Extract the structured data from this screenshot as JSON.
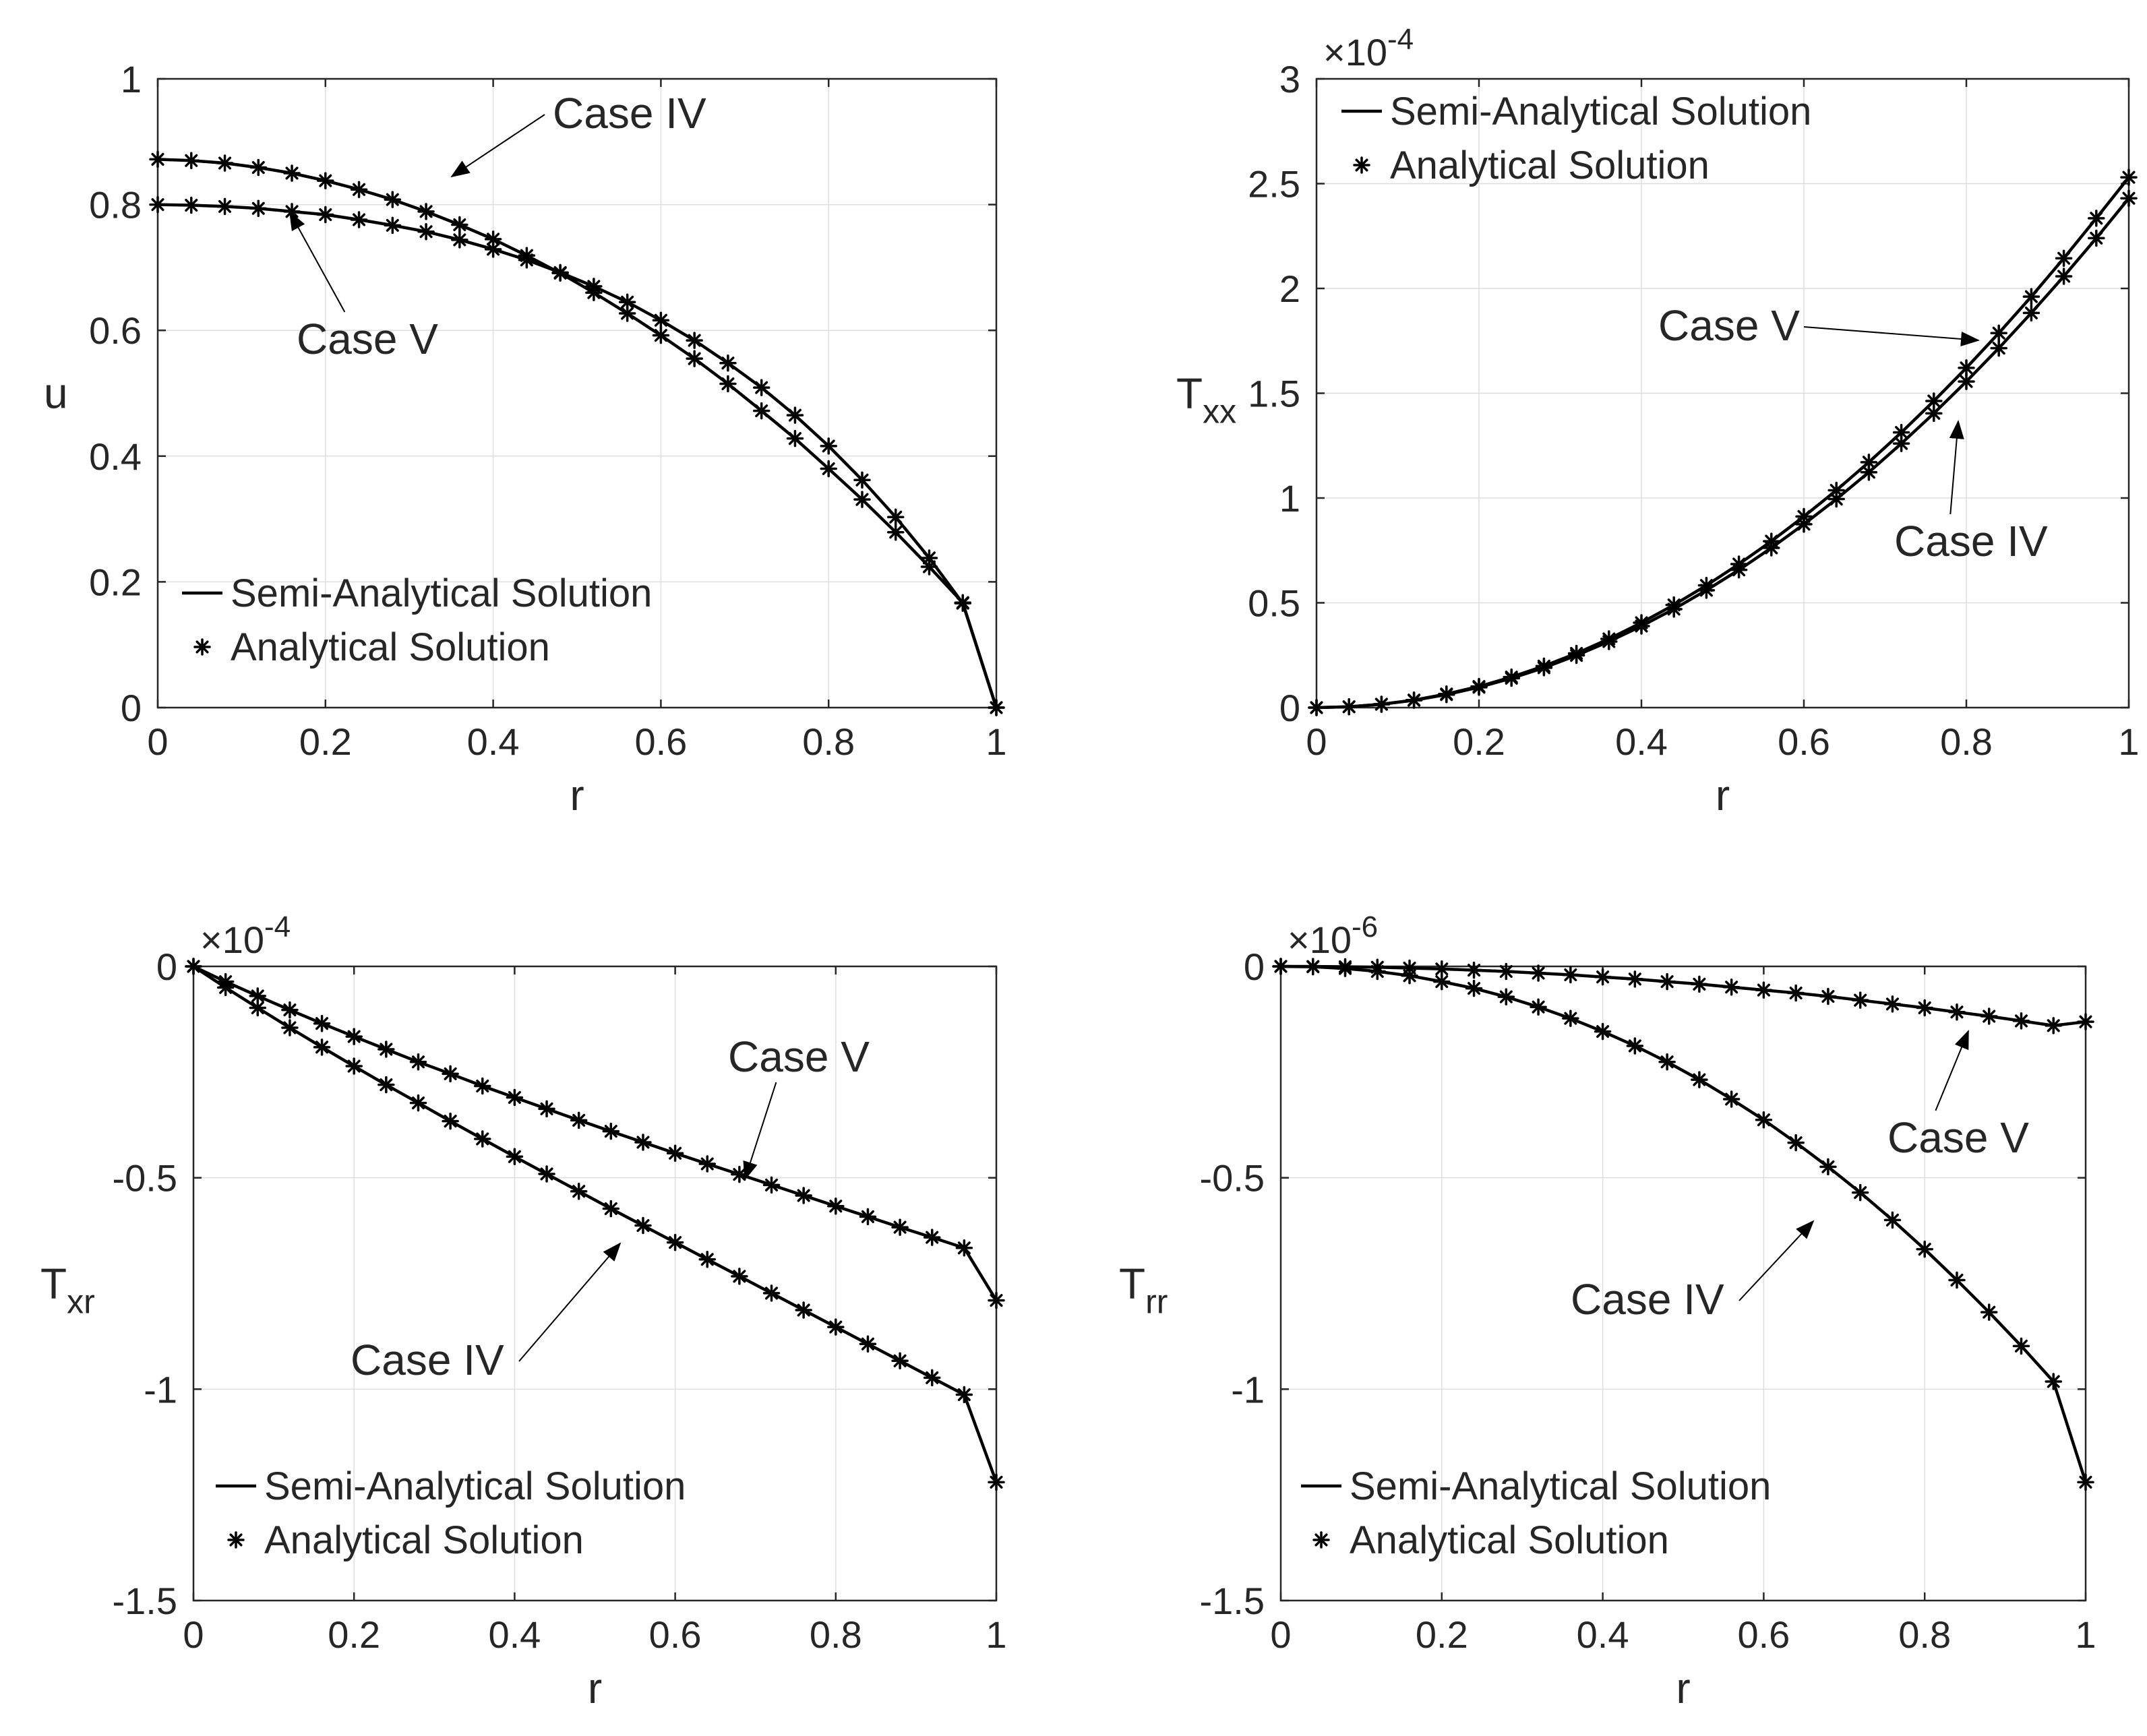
{
  "chart_data": [
    {
      "type": "line",
      "title": "",
      "xlabel": "r",
      "ylabel": "u",
      "ylabel_sub": "",
      "xlim": [
        0,
        1
      ],
      "ylim": [
        0,
        1
      ],
      "exponent_label": "",
      "x_ticks": [
        0,
        0.2,
        0.4,
        0.6,
        0.8,
        1
      ],
      "x_tick_labels": [
        "0",
        "0.2",
        "0.4",
        "0.6",
        "0.8",
        "1"
      ],
      "y_ticks": [
        0,
        0.2,
        0.4,
        0.6,
        0.8,
        1
      ],
      "y_tick_labels": [
        "0",
        "0.2",
        "0.4",
        "0.6",
        "0.8",
        "1"
      ],
      "grid": true,
      "legend": {
        "placement": "bottom-left",
        "entries": [
          {
            "symbol": "line",
            "label": "Semi-Analytical Solution"
          },
          {
            "symbol": "asterisk",
            "label": "Analytical Solution"
          }
        ]
      },
      "series": [
        {
          "name": "Case IV",
          "x": [
            0,
            0.04,
            0.08,
            0.12,
            0.16,
            0.2,
            0.24,
            0.28,
            0.32,
            0.36,
            0.4,
            0.44,
            0.48,
            0.52,
            0.56,
            0.6,
            0.64,
            0.68,
            0.72,
            0.76,
            0.8,
            0.84,
            0.88,
            0.92,
            0.96,
            1
          ],
          "y": [
            0.872,
            0.87,
            0.866,
            0.859,
            0.85,
            0.838,
            0.824,
            0.808,
            0.789,
            0.768,
            0.745,
            0.719,
            0.691,
            0.66,
            0.627,
            0.592,
            0.555,
            0.515,
            0.472,
            0.428,
            0.38,
            0.331,
            0.279,
            0.224,
            0.167,
            0.0
          ]
        },
        {
          "name": "Case V",
          "x": [
            0,
            0.04,
            0.08,
            0.12,
            0.16,
            0.2,
            0.24,
            0.28,
            0.32,
            0.36,
            0.4,
            0.44,
            0.48,
            0.52,
            0.56,
            0.6,
            0.64,
            0.68,
            0.72,
            0.76,
            0.8,
            0.84,
            0.88,
            0.92,
            0.96,
            1
          ],
          "y": [
            0.8,
            0.799,
            0.797,
            0.794,
            0.789,
            0.784,
            0.776,
            0.767,
            0.757,
            0.744,
            0.729,
            0.712,
            0.692,
            0.67,
            0.645,
            0.616,
            0.584,
            0.548,
            0.509,
            0.465,
            0.416,
            0.362,
            0.303,
            0.238,
            0.166,
            0.0
          ]
        }
      ],
      "annotations": [
        {
          "text": "Case IV",
          "target": [
            0.35,
            0.8
          ]
        },
        {
          "text": "Case V",
          "target": [
            0.16,
            0.79
          ]
        }
      ]
    },
    {
      "type": "line",
      "title": "",
      "xlabel": "r",
      "ylabel": "T",
      "ylabel_sub": "xx",
      "xlim": [
        0,
        1
      ],
      "ylim": [
        0,
        3
      ],
      "exponent_label": "10",
      "exponent_power": "-4",
      "x_ticks": [
        0,
        0.2,
        0.4,
        0.6,
        0.8,
        1
      ],
      "x_tick_labels": [
        "0",
        "0.2",
        "0.4",
        "0.6",
        "0.8",
        "1"
      ],
      "y_ticks": [
        0,
        0.5,
        1,
        1.5,
        2,
        2.5,
        3
      ],
      "y_tick_labels": [
        "0",
        "0.5",
        "1",
        "1.5",
        "2",
        "2.5",
        "3"
      ],
      "grid": true,
      "legend": {
        "placement": "top-left",
        "entries": [
          {
            "symbol": "line",
            "label": "Semi-Analytical Solution"
          },
          {
            "symbol": "asterisk",
            "label": "Analytical Solution"
          }
        ]
      },
      "series": [
        {
          "name": "Case V",
          "x": [
            0,
            0.04,
            0.08,
            0.12,
            0.16,
            0.2,
            0.24,
            0.28,
            0.32,
            0.36,
            0.4,
            0.44,
            0.48,
            0.52,
            0.56,
            0.6,
            0.64,
            0.68,
            0.72,
            0.76,
            0.8,
            0.84,
            0.88,
            0.92,
            0.96,
            1
          ],
          "y": [
            0.0,
            0.004,
            0.016,
            0.036,
            0.065,
            0.101,
            0.146,
            0.198,
            0.259,
            0.328,
            0.405,
            0.49,
            0.583,
            0.685,
            0.794,
            0.912,
            1.037,
            1.171,
            1.313,
            1.463,
            1.621,
            1.787,
            1.961,
            2.144,
            2.335,
            2.53
          ]
        },
        {
          "name": "Case IV",
          "x": [
            0,
            0.04,
            0.08,
            0.12,
            0.16,
            0.2,
            0.24,
            0.28,
            0.32,
            0.36,
            0.4,
            0.44,
            0.48,
            0.52,
            0.56,
            0.6,
            0.64,
            0.68,
            0.72,
            0.76,
            0.8,
            0.84,
            0.88,
            0.92,
            0.96,
            1
          ],
          "y": [
            0.0,
            0.004,
            0.016,
            0.035,
            0.062,
            0.097,
            0.14,
            0.19,
            0.249,
            0.315,
            0.389,
            0.47,
            0.56,
            0.657,
            0.762,
            0.875,
            0.995,
            1.123,
            1.26,
            1.404,
            1.556,
            1.715,
            1.883,
            2.058,
            2.24,
            2.43
          ]
        }
      ],
      "annotations": [
        {
          "text": "Case V",
          "target": [
            0.8,
            1.75
          ]
        },
        {
          "text": "Case IV",
          "target": [
            0.8,
            1.5
          ]
        }
      ]
    },
    {
      "type": "line",
      "title": "",
      "xlabel": "r",
      "ylabel": "T",
      "ylabel_sub": "xr",
      "xlim": [
        0,
        1
      ],
      "ylim": [
        -1.5,
        0
      ],
      "exponent_label": "10",
      "exponent_power": "-4",
      "x_ticks": [
        0,
        0.2,
        0.4,
        0.6,
        0.8,
        1
      ],
      "x_tick_labels": [
        "0",
        "0.2",
        "0.4",
        "0.6",
        "0.8",
        "1"
      ],
      "y_ticks": [
        -1.5,
        -1,
        -0.5,
        0
      ],
      "y_tick_labels": [
        "-1.5",
        "-1",
        "-0.5",
        "0"
      ],
      "grid": true,
      "legend": {
        "placement": "bottom-left",
        "entries": [
          {
            "symbol": "line",
            "label": "Semi-Analytical Solution"
          },
          {
            "symbol": "asterisk",
            "label": "Analytical Solution"
          }
        ]
      },
      "series": [
        {
          "name": "Case V",
          "x": [
            0,
            0.04,
            0.08,
            0.12,
            0.16,
            0.2,
            0.24,
            0.28,
            0.32,
            0.36,
            0.4,
            0.44,
            0.48,
            0.52,
            0.56,
            0.6,
            0.64,
            0.68,
            0.72,
            0.76,
            0.8,
            0.84,
            0.88,
            0.92,
            0.96,
            1
          ],
          "y": [
            0.0,
            -0.036,
            -0.07,
            -0.103,
            -0.135,
            -0.166,
            -0.196,
            -0.226,
            -0.254,
            -0.283,
            -0.31,
            -0.337,
            -0.364,
            -0.39,
            -0.416,
            -0.442,
            -0.467,
            -0.492,
            -0.517,
            -0.542,
            -0.567,
            -0.592,
            -0.617,
            -0.641,
            -0.666,
            -0.79
          ]
        },
        {
          "name": "Case IV",
          "x": [
            0,
            0.04,
            0.08,
            0.12,
            0.16,
            0.2,
            0.24,
            0.28,
            0.32,
            0.36,
            0.4,
            0.44,
            0.48,
            0.52,
            0.56,
            0.6,
            0.64,
            0.68,
            0.72,
            0.76,
            0.8,
            0.84,
            0.88,
            0.92,
            0.96,
            1
          ],
          "y": [
            0.0,
            -0.05,
            -0.098,
            -0.145,
            -0.191,
            -0.236,
            -0.28,
            -0.323,
            -0.366,
            -0.408,
            -0.45,
            -0.491,
            -0.532,
            -0.573,
            -0.613,
            -0.653,
            -0.693,
            -0.733,
            -0.773,
            -0.813,
            -0.853,
            -0.893,
            -0.933,
            -0.973,
            -1.013,
            -1.22
          ]
        }
      ],
      "annotations": [
        {
          "text": "Case V",
          "target": [
            0.7,
            -0.5
          ]
        },
        {
          "text": "Case IV",
          "target": [
            0.53,
            -0.65
          ]
        }
      ]
    },
    {
      "type": "line",
      "title": "",
      "xlabel": "r",
      "ylabel": "T",
      "ylabel_sub": "rr",
      "xlim": [
        0,
        1
      ],
      "ylim": [
        -1.5,
        0
      ],
      "exponent_label": "10",
      "exponent_power": "-6",
      "x_ticks": [
        0,
        0.2,
        0.4,
        0.6,
        0.8,
        1
      ],
      "x_tick_labels": [
        "0",
        "0.2",
        "0.4",
        "0.6",
        "0.8",
        "1"
      ],
      "y_ticks": [
        -1.5,
        -1,
        -0.5,
        0
      ],
      "y_tick_labels": [
        "-1.5",
        "-1",
        "-0.5",
        "0"
      ],
      "grid": true,
      "legend": {
        "placement": "bottom-left",
        "entries": [
          {
            "symbol": "line",
            "label": "Semi-Analytical Solution"
          },
          {
            "symbol": "asterisk",
            "label": "Analytical Solution"
          }
        ]
      },
      "series": [
        {
          "name": "Case V",
          "x": [
            0,
            0.04,
            0.08,
            0.12,
            0.16,
            0.2,
            0.24,
            0.28,
            0.32,
            0.36,
            0.4,
            0.44,
            0.48,
            0.52,
            0.56,
            0.6,
            0.64,
            0.68,
            0.72,
            0.76,
            0.8,
            0.84,
            0.88,
            0.92,
            0.96,
            1
          ],
          "y": [
            0.0,
            -0.0002,
            -0.0008,
            -0.002,
            -0.004,
            -0.006,
            -0.009,
            -0.012,
            -0.016,
            -0.02,
            -0.025,
            -0.03,
            -0.036,
            -0.042,
            -0.049,
            -0.056,
            -0.063,
            -0.071,
            -0.08,
            -0.089,
            -0.098,
            -0.108,
            -0.118,
            -0.129,
            -0.14,
            -0.131
          ]
        },
        {
          "name": "Case IV",
          "x": [
            0,
            0.04,
            0.08,
            0.12,
            0.16,
            0.2,
            0.24,
            0.28,
            0.32,
            0.36,
            0.4,
            0.44,
            0.48,
            0.52,
            0.56,
            0.6,
            0.64,
            0.68,
            0.72,
            0.76,
            0.8,
            0.84,
            0.88,
            0.92,
            0.96,
            1
          ],
          "y": [
            0.0,
            -0.001,
            -0.005,
            -0.012,
            -0.022,
            -0.036,
            -0.052,
            -0.072,
            -0.096,
            -0.123,
            -0.154,
            -0.188,
            -0.226,
            -0.268,
            -0.314,
            -0.363,
            -0.417,
            -0.474,
            -0.535,
            -0.6,
            -0.669,
            -0.742,
            -0.818,
            -0.898,
            -0.982,
            -1.22
          ]
        }
      ],
      "annotations": [
        {
          "text": "Case V",
          "target": [
            0.86,
            -0.11
          ]
        },
        {
          "text": "Case IV",
          "target": [
            0.7,
            -0.6
          ]
        }
      ]
    }
  ]
}
